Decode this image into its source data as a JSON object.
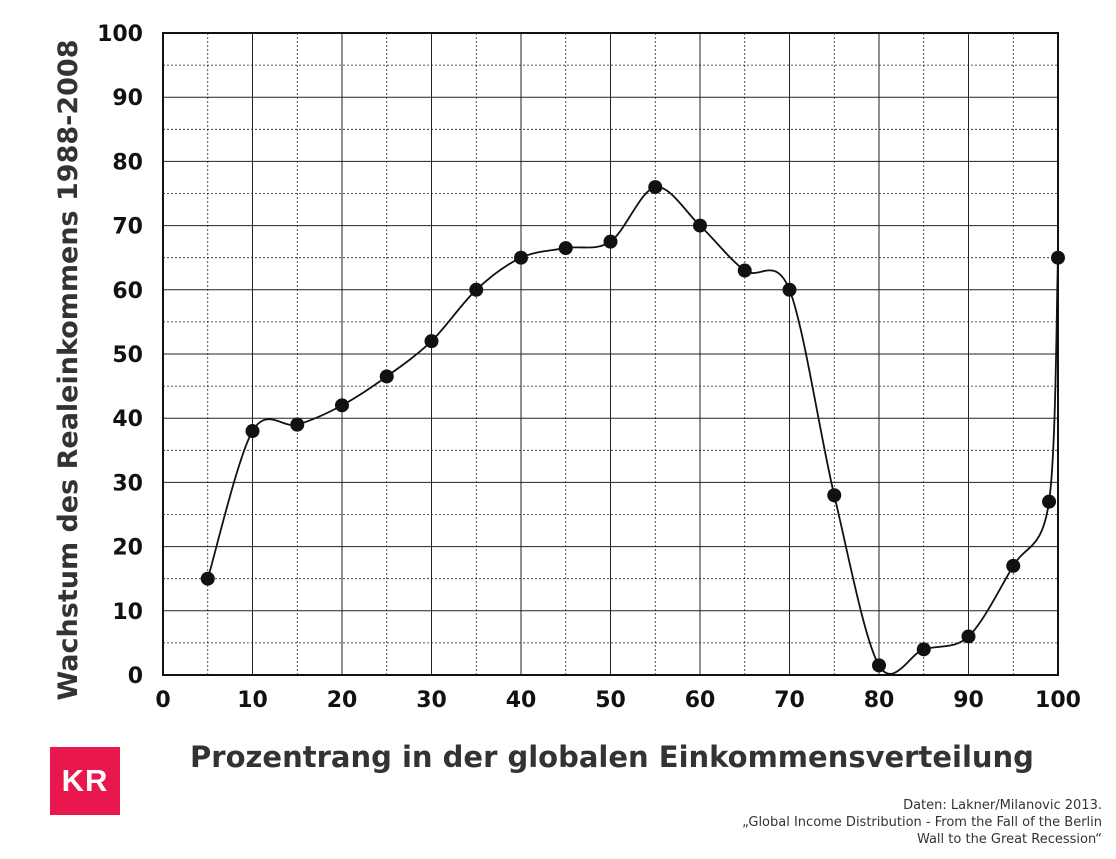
{
  "chart_data": {
    "type": "line",
    "xlabel": "Prozentrang in der globalen Einkommensverteilung",
    "ylabel": "Wachstum des Realeinkommens 1988-2008",
    "xlim": [
      0,
      100
    ],
    "ylim": [
      0,
      100
    ],
    "xticks": [
      "0",
      "10",
      "20",
      "30",
      "40",
      "50",
      "60",
      "70",
      "80",
      "90",
      "100"
    ],
    "yticks": [
      "0",
      "10",
      "20",
      "30",
      "40",
      "50",
      "60",
      "70",
      "80",
      "90",
      "100"
    ],
    "grid": true,
    "series": [
      {
        "x": [
          5,
          10,
          15,
          20,
          25,
          30,
          35,
          40,
          45,
          50,
          55,
          60,
          65,
          70,
          75,
          80,
          85,
          90,
          95,
          99,
          100
        ],
        "y": [
          15,
          38,
          39,
          42,
          46.5,
          52,
          60,
          65,
          66.5,
          67.5,
          76,
          70,
          63,
          60,
          28,
          1.5,
          4,
          6,
          17,
          27,
          65
        ]
      }
    ]
  },
  "logo": {
    "text": "KR",
    "color": "#e8174e"
  },
  "source": {
    "line1": "Daten: Lakner/Milanovic 2013.",
    "line2": "„Global Income Distribution - From the Fall of the Berlin",
    "line3": "Wall to the Great Recession“"
  }
}
